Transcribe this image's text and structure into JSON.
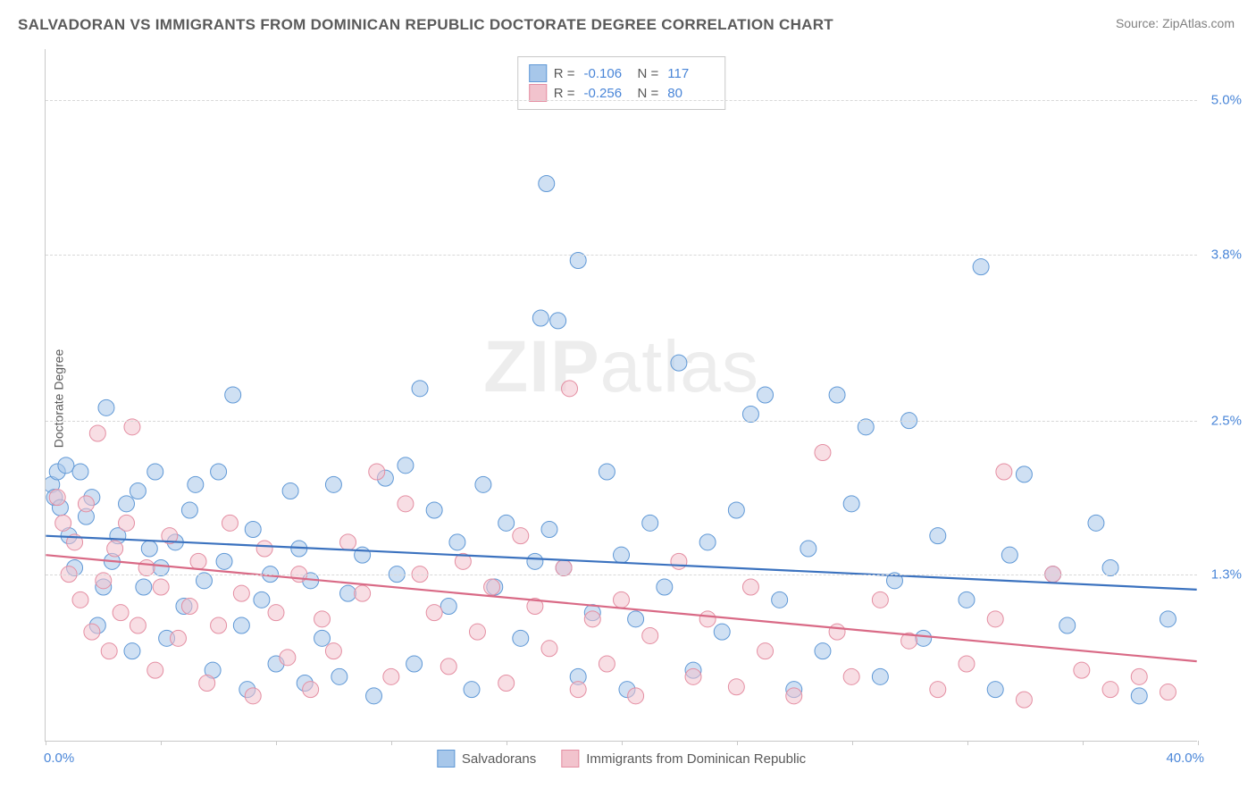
{
  "title": "SALVADORAN VS IMMIGRANTS FROM DOMINICAN REPUBLIC DOCTORATE DEGREE CORRELATION CHART",
  "source": "Source: ZipAtlas.com",
  "y_axis_label": "Doctorate Degree",
  "watermark": {
    "bold": "ZIP",
    "rest": "atlas"
  },
  "chart": {
    "type": "scatter",
    "background_color": "#ffffff",
    "grid_color": "#d8d8d8",
    "axis_color": "#c8c8c8",
    "tick_label_color": "#4a86d8",
    "label_fontsize": 14,
    "tick_fontsize": 15,
    "xlim": [
      0.0,
      40.0
    ],
    "ylim": [
      0.0,
      5.4
    ],
    "x_ticks": [
      0.0,
      40.0
    ],
    "x_tick_labels": [
      "0.0%",
      "40.0%"
    ],
    "x_minor_tick_step": 4.0,
    "y_gridlines": [
      1.3,
      2.5,
      3.8,
      5.0
    ],
    "y_tick_labels": [
      "1.3%",
      "2.5%",
      "3.8%",
      "5.0%"
    ],
    "marker_radius": 9,
    "marker_opacity": 0.55,
    "line_width": 2.2,
    "series": [
      {
        "name": "Salvadorans",
        "color_fill": "#a7c7ea",
        "color_stroke": "#5f98d6",
        "line_color": "#3b72bf",
        "r": "-0.106",
        "n": "117",
        "trend": {
          "y_at_xmin": 1.6,
          "y_at_xmax": 1.18
        },
        "points": [
          [
            0.2,
            2.0
          ],
          [
            0.3,
            1.9
          ],
          [
            0.4,
            2.1
          ],
          [
            0.5,
            1.82
          ],
          [
            0.7,
            2.15
          ],
          [
            0.8,
            1.6
          ],
          [
            1.0,
            1.35
          ],
          [
            1.2,
            2.1
          ],
          [
            1.4,
            1.75
          ],
          [
            1.6,
            1.9
          ],
          [
            1.8,
            0.9
          ],
          [
            2.0,
            1.2
          ],
          [
            2.1,
            2.6
          ],
          [
            2.3,
            1.4
          ],
          [
            2.5,
            1.6
          ],
          [
            2.8,
            1.85
          ],
          [
            3.0,
            0.7
          ],
          [
            3.2,
            1.95
          ],
          [
            3.4,
            1.2
          ],
          [
            3.6,
            1.5
          ],
          [
            3.8,
            2.1
          ],
          [
            4.0,
            1.35
          ],
          [
            4.2,
            0.8
          ],
          [
            4.5,
            1.55
          ],
          [
            4.8,
            1.05
          ],
          [
            5.0,
            1.8
          ],
          [
            5.2,
            2.0
          ],
          [
            5.5,
            1.25
          ],
          [
            5.8,
            0.55
          ],
          [
            6.0,
            2.1
          ],
          [
            6.2,
            1.4
          ],
          [
            6.5,
            2.7
          ],
          [
            6.8,
            0.9
          ],
          [
            7.0,
            0.4
          ],
          [
            7.2,
            1.65
          ],
          [
            7.5,
            1.1
          ],
          [
            7.8,
            1.3
          ],
          [
            8.0,
            0.6
          ],
          [
            8.5,
            1.95
          ],
          [
            8.8,
            1.5
          ],
          [
            9.0,
            0.45
          ],
          [
            9.2,
            1.25
          ],
          [
            9.6,
            0.8
          ],
          [
            10.0,
            2.0
          ],
          [
            10.2,
            0.5
          ],
          [
            10.5,
            1.15
          ],
          [
            11.0,
            1.45
          ],
          [
            11.4,
            0.35
          ],
          [
            11.8,
            2.05
          ],
          [
            12.2,
            1.3
          ],
          [
            12.5,
            2.15
          ],
          [
            12.8,
            0.6
          ],
          [
            13.0,
            2.75
          ],
          [
            13.5,
            1.8
          ],
          [
            14.0,
            1.05
          ],
          [
            14.3,
            1.55
          ],
          [
            14.8,
            0.4
          ],
          [
            15.2,
            2.0
          ],
          [
            15.6,
            1.2
          ],
          [
            16.0,
            1.7
          ],
          [
            16.5,
            0.8
          ],
          [
            17.0,
            1.4
          ],
          [
            17.4,
            4.35
          ],
          [
            17.2,
            3.3
          ],
          [
            17.8,
            3.28
          ],
          [
            17.5,
            1.65
          ],
          [
            18.0,
            1.35
          ],
          [
            18.5,
            0.5
          ],
          [
            18.5,
            3.75
          ],
          [
            19.0,
            1.0
          ],
          [
            19.5,
            2.1
          ],
          [
            20.0,
            1.45
          ],
          [
            20.2,
            0.4
          ],
          [
            20.5,
            0.95
          ],
          [
            21.0,
            1.7
          ],
          [
            21.5,
            1.2
          ],
          [
            22.0,
            2.95
          ],
          [
            22.5,
            0.55
          ],
          [
            23.0,
            1.55
          ],
          [
            23.5,
            0.85
          ],
          [
            24.0,
            1.8
          ],
          [
            24.5,
            2.55
          ],
          [
            25.0,
            2.7
          ],
          [
            25.5,
            1.1
          ],
          [
            26.0,
            0.4
          ],
          [
            26.5,
            1.5
          ],
          [
            27.0,
            0.7
          ],
          [
            27.5,
            2.7
          ],
          [
            28.0,
            1.85
          ],
          [
            28.5,
            2.45
          ],
          [
            29.0,
            0.5
          ],
          [
            29.5,
            1.25
          ],
          [
            30.0,
            2.5
          ],
          [
            30.5,
            0.8
          ],
          [
            31.0,
            1.6
          ],
          [
            32.0,
            1.1
          ],
          [
            32.5,
            3.7
          ],
          [
            33.0,
            0.4
          ],
          [
            33.5,
            1.45
          ],
          [
            34.0,
            2.08
          ],
          [
            35.0,
            1.3
          ],
          [
            35.5,
            0.9
          ],
          [
            36.5,
            1.7
          ],
          [
            37.0,
            1.35
          ],
          [
            38.0,
            0.35
          ],
          [
            39.0,
            0.95
          ]
        ]
      },
      {
        "name": "Immigrants from Dominican Republic",
        "color_fill": "#f2c3cd",
        "color_stroke": "#e48ea2",
        "line_color": "#d96a86",
        "r": "-0.256",
        "n": "80",
        "trend": {
          "y_at_xmin": 1.45,
          "y_at_xmax": 0.62
        },
        "points": [
          [
            0.4,
            1.9
          ],
          [
            0.6,
            1.7
          ],
          [
            0.8,
            1.3
          ],
          [
            1.0,
            1.55
          ],
          [
            1.2,
            1.1
          ],
          [
            1.4,
            1.85
          ],
          [
            1.6,
            0.85
          ],
          [
            1.8,
            2.4
          ],
          [
            2.0,
            1.25
          ],
          [
            2.2,
            0.7
          ],
          [
            2.4,
            1.5
          ],
          [
            2.6,
            1.0
          ],
          [
            2.8,
            1.7
          ],
          [
            3.0,
            2.45
          ],
          [
            3.2,
            0.9
          ],
          [
            3.5,
            1.35
          ],
          [
            3.8,
            0.55
          ],
          [
            4.0,
            1.2
          ],
          [
            4.3,
            1.6
          ],
          [
            4.6,
            0.8
          ],
          [
            5.0,
            1.05
          ],
          [
            5.3,
            1.4
          ],
          [
            5.6,
            0.45
          ],
          [
            6.0,
            0.9
          ],
          [
            6.4,
            1.7
          ],
          [
            6.8,
            1.15
          ],
          [
            7.2,
            0.35
          ],
          [
            7.6,
            1.5
          ],
          [
            8.0,
            1.0
          ],
          [
            8.4,
            0.65
          ],
          [
            8.8,
            1.3
          ],
          [
            9.2,
            0.4
          ],
          [
            9.6,
            0.95
          ],
          [
            10.0,
            0.7
          ],
          [
            10.5,
            1.55
          ],
          [
            11.0,
            1.15
          ],
          [
            11.5,
            2.1
          ],
          [
            12.0,
            0.5
          ],
          [
            12.5,
            1.85
          ],
          [
            13.0,
            1.3
          ],
          [
            13.5,
            1.0
          ],
          [
            14.0,
            0.58
          ],
          [
            14.5,
            1.4
          ],
          [
            15.0,
            0.85
          ],
          [
            15.5,
            1.2
          ],
          [
            16.0,
            0.45
          ],
          [
            16.5,
            1.6
          ],
          [
            17.0,
            1.05
          ],
          [
            17.5,
            0.72
          ],
          [
            18.0,
            1.35
          ],
          [
            18.2,
            2.75
          ],
          [
            18.5,
            0.4
          ],
          [
            19.0,
            0.95
          ],
          [
            19.5,
            0.6
          ],
          [
            20.0,
            1.1
          ],
          [
            20.5,
            0.35
          ],
          [
            21.0,
            0.82
          ],
          [
            22.0,
            1.4
          ],
          [
            22.5,
            0.5
          ],
          [
            23.0,
            0.95
          ],
          [
            24.0,
            0.42
          ],
          [
            24.5,
            1.2
          ],
          [
            25.0,
            0.7
          ],
          [
            26.0,
            0.35
          ],
          [
            27.0,
            2.25
          ],
          [
            27.5,
            0.85
          ],
          [
            28.0,
            0.5
          ],
          [
            29.0,
            1.1
          ],
          [
            30.0,
            0.78
          ],
          [
            31.0,
            0.4
          ],
          [
            32.0,
            0.6
          ],
          [
            33.0,
            0.95
          ],
          [
            33.3,
            2.1
          ],
          [
            34.0,
            0.32
          ],
          [
            35.0,
            1.3
          ],
          [
            36.0,
            0.55
          ],
          [
            37.0,
            0.4
          ],
          [
            38.0,
            0.5
          ],
          [
            39.0,
            0.38
          ]
        ]
      }
    ]
  },
  "top_legend": {
    "r_label": "R =",
    "n_label": "N ="
  },
  "bottom_legend": {
    "items": [
      "Salvadorans",
      "Immigrants from Dominican Republic"
    ]
  }
}
